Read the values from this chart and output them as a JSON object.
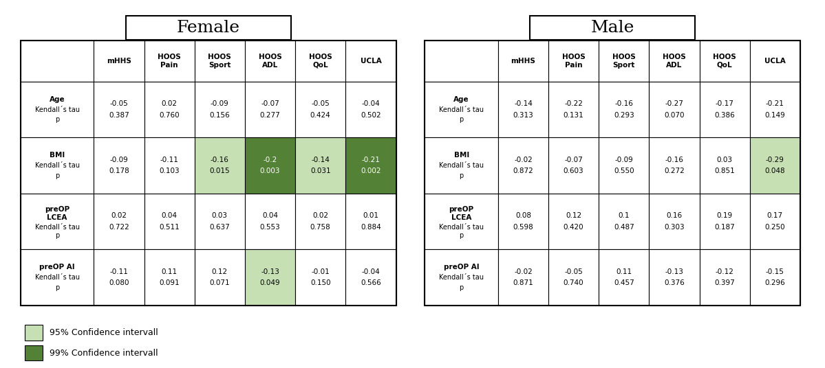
{
  "female_title": "Female",
  "male_title": "Male",
  "col_headers": [
    "mHHS",
    "HOOS\nPain",
    "HOOS\nSport",
    "HOOS\nADL",
    "HOOS\nQoL",
    "UCLA"
  ],
  "row_headers": [
    [
      "Age",
      "Kendall´s tau",
      "p"
    ],
    [
      "BMI",
      "Kendall´s tau",
      "p"
    ],
    [
      "preOP\nLCEA",
      "Kendall´s tau",
      "p"
    ],
    [
      "preOP AI",
      "Kendall´s tau",
      "p"
    ]
  ],
  "female_data": [
    [
      "-0.05\n0.387",
      "0.02\n0.760",
      "-0.09\n0.156",
      "-0.07\n0.277",
      "-0.05\n0.424",
      "-0.04\n0.502"
    ],
    [
      "-0.09\n0.178",
      "-0.11\n0.103",
      "-0.16\n0.015",
      "-0.2\n0.003",
      "-0.14\n0.031",
      "-0.21\n0.002"
    ],
    [
      "0.02\n0.722",
      "0.04\n0.511",
      "0.03\n0.637",
      "0.04\n0.553",
      "0.02\n0.758",
      "0.01\n0.884"
    ],
    [
      "-0.11\n0.080",
      "0.11\n0.091",
      "0.12\n0.071",
      "-0.13\n0.049",
      "-0.01\n0.150",
      "-0.04\n0.566"
    ]
  ],
  "male_data": [
    [
      "-0.14\n0.313",
      "-0.22\n0.131",
      "-0.16\n0.293",
      "-0.27\n0.070",
      "-0.17\n0.386",
      "-0.21\n0.149"
    ],
    [
      "-0.02\n0.872",
      "-0.07\n0.603",
      "-0.09\n0.550",
      "-0.16\n0.272",
      "0.03\n0.851",
      "-0.29\n0.048"
    ],
    [
      "0.08\n0.598",
      "0.12\n0.420",
      "0.1\n0.487",
      "0.16\n0.303",
      "0.19\n0.187",
      "0.17\n0.250"
    ],
    [
      "-0.02\n0.871",
      "-0.05\n0.740",
      "0.11\n0.457",
      "-0.13\n0.376",
      "-0.12\n0.397",
      "-0.15\n0.296"
    ]
  ],
  "female_cell_colors": [
    [
      "white",
      "white",
      "white",
      "white",
      "white",
      "white"
    ],
    [
      "white",
      "white",
      "#c6e0b4",
      "#538135",
      "#c6e0b4",
      "#538135"
    ],
    [
      "white",
      "white",
      "white",
      "white",
      "white",
      "white"
    ],
    [
      "white",
      "white",
      "white",
      "#c6e0b4",
      "white",
      "white"
    ]
  ],
  "male_cell_colors": [
    [
      "white",
      "white",
      "white",
      "white",
      "white",
      "white"
    ],
    [
      "white",
      "white",
      "white",
      "white",
      "white",
      "#c6e0b4"
    ],
    [
      "white",
      "white",
      "white",
      "white",
      "white",
      "white"
    ],
    [
      "white",
      "white",
      "white",
      "white",
      "white",
      "white"
    ]
  ],
  "female_text_colors": [
    [
      "black",
      "black",
      "black",
      "black",
      "black",
      "black"
    ],
    [
      "black",
      "black",
      "black",
      "white",
      "black",
      "white"
    ],
    [
      "black",
      "black",
      "black",
      "black",
      "black",
      "black"
    ],
    [
      "black",
      "black",
      "black",
      "black",
      "black",
      "black"
    ]
  ],
  "male_text_colors": [
    [
      "black",
      "black",
      "black",
      "black",
      "black",
      "black"
    ],
    [
      "black",
      "black",
      "black",
      "black",
      "black",
      "black"
    ],
    [
      "black",
      "black",
      "black",
      "black",
      "black",
      "black"
    ],
    [
      "black",
      "black",
      "black",
      "black",
      "black",
      "black"
    ]
  ],
  "light_green": "#c6e0b4",
  "dark_green": "#538135",
  "legend_95": "95% Confidence intervall",
  "legend_99": "99% Confidence intervall",
  "background_color": "#ffffff"
}
